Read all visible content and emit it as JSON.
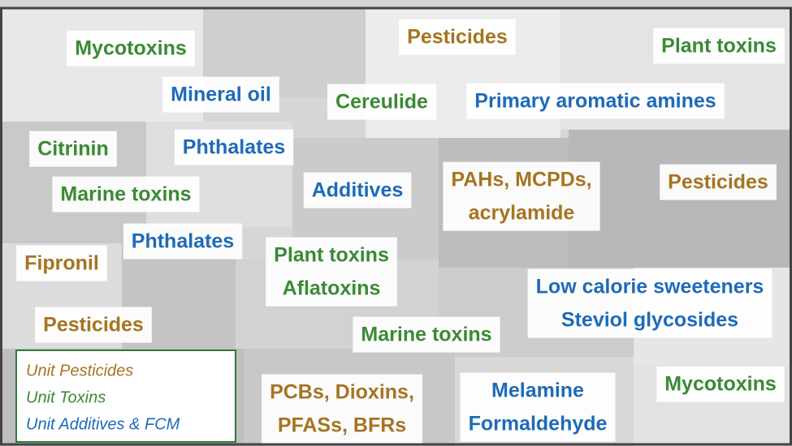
{
  "labels": [
    {
      "lines": [
        "Mycotoxins"
      ],
      "color": "#3b8a34"
    },
    {
      "lines": [
        "Pesticides"
      ],
      "color": "#a67421"
    },
    {
      "lines": [
        "Plant toxins"
      ],
      "color": "#3b8a34"
    },
    {
      "lines": [
        "Mineral oil"
      ],
      "color": "#1e6bb8"
    },
    {
      "lines": [
        "Cereulide"
      ],
      "color": "#3b8a34"
    },
    {
      "lines": [
        "Primary aromatic amines"
      ],
      "color": "#1e6bb8"
    },
    {
      "lines": [
        "Citrinin"
      ],
      "color": "#3b8a34"
    },
    {
      "lines": [
        "Phthalates"
      ],
      "color": "#1e6bb8"
    },
    {
      "lines": [
        "Marine toxins"
      ],
      "color": "#3b8a34"
    },
    {
      "lines": [
        "Additives"
      ],
      "color": "#1e6bb8"
    },
    {
      "lines": [
        "PAHs, MCPDs,",
        "acrylamide"
      ],
      "color": "#a67421"
    },
    {
      "lines": [
        "Pesticides"
      ],
      "color": "#a67421"
    },
    {
      "lines": [
        "Phthalates"
      ],
      "color": "#1e6bb8"
    },
    {
      "lines": [
        "Fipronil"
      ],
      "color": "#a67421"
    },
    {
      "lines": [
        "Plant toxins",
        "Aflatoxins"
      ],
      "color": "#3b8a34"
    },
    {
      "lines": [
        "Low calorie sweeteners",
        "Steviol glycosides"
      ],
      "color": "#1e6bb8"
    },
    {
      "lines": [
        "Pesticides"
      ],
      "color": "#a67421"
    },
    {
      "lines": [
        "Marine toxins"
      ],
      "color": "#3b8a34"
    },
    {
      "lines": [
        "PCBs, Dioxins,",
        "PFASs, BFRs"
      ],
      "color": "#a67421"
    },
    {
      "lines": [
        "Melamine",
        "Formaldehyde"
      ],
      "color": "#1e6bb8"
    },
    {
      "lines": [
        "Mycotoxins"
      ],
      "color": "#3b8a34"
    }
  ],
  "legend": [
    {
      "name": "Unit Pesticides",
      "color": "#a67421"
    },
    {
      "name": "Unit Toxins",
      "color": "#3b8a34"
    },
    {
      "name": "Unit Additives & FCM",
      "color": "#1e6bb8"
    }
  ]
}
